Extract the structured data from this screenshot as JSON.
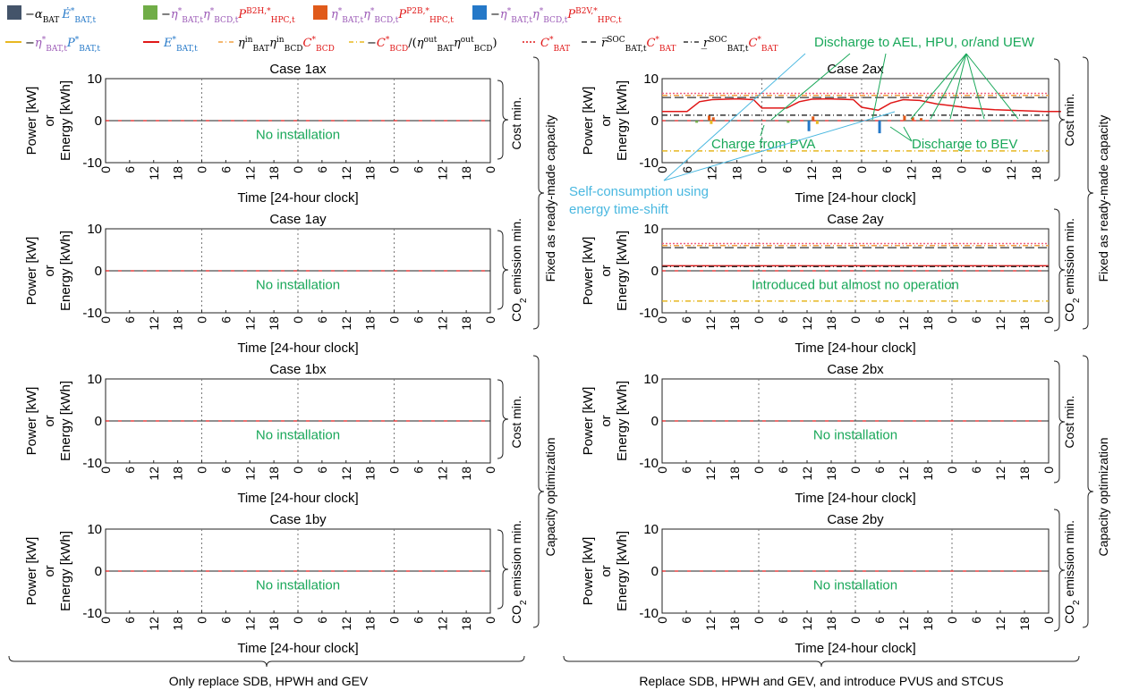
{
  "legend": {
    "row1": [
      {
        "minus": "−",
        "coef": "α",
        "coef_sub": "BAT",
        "sym": "Ė",
        "sup": "*",
        "sub": "BAT,t",
        "color_key": "navy"
      },
      {
        "minus": "−",
        "eta1": "η",
        "eta1_sup": "*",
        "eta1_sub": "BAT,t",
        "eta2": "η",
        "eta2_sup": "*",
        "eta2_sub": "BCD,t",
        "p": "P",
        "p_sup": "B2H,*",
        "p_sub": "HPC,t",
        "color_key": "green"
      },
      {
        "minus": "",
        "eta1": "η",
        "eta1_sup": "*",
        "eta1_sub": "BAT,t",
        "eta2": "η",
        "eta2_sup": "*",
        "eta2_sub": "BCD,t",
        "p": "P",
        "p_sup": "P2B,*",
        "p_sub": "HPC,t",
        "color_key": "orange"
      },
      {
        "minus": "−",
        "eta1": "η",
        "eta1_sup": "*",
        "eta1_sub": "BAT,t",
        "eta2": "η",
        "eta2_sup": "*",
        "eta2_sub": "BCD,t",
        "p": "P",
        "p_sup": "B2V,*",
        "p_sub": "HPC,t",
        "color_key": "blue"
      }
    ],
    "row2": [
      {
        "minus": "−",
        "eta": "η",
        "eta_sup": "*",
        "eta_sub": "BAT,t",
        "p": "P",
        "p_sup": "*",
        "p_sub": "BAT,t"
      },
      {
        "e": "E",
        "e_sup": "*",
        "e_sub": "BAT,t"
      },
      {
        "eta1": "η",
        "eta1_sup": "in",
        "eta1_sub": "BAT",
        "eta2": "η",
        "eta2_sup": "in",
        "eta2_sub": "BCD",
        "c": "C",
        "c_sup": "*",
        "c_sub": "BCD"
      },
      {
        "minus": "−",
        "c": "C",
        "c_sup": "*",
        "c_sub": "BCD",
        "slash": "/(",
        "eta1": "η",
        "eta1_sup": "out",
        "eta1_sub": "BAT",
        "eta2": "η",
        "eta2_sup": "out",
        "eta2_sub": "BCD",
        "close": ")"
      },
      {
        "c": "C",
        "c_sup": "*",
        "c_sub": "BAT"
      },
      {
        "r": "r̅",
        "r_sup": "SOC",
        "r_sub": "BAT,t",
        "c": "C",
        "c_sup": "*",
        "c_sub": "BAT"
      },
      {
        "r": "r̲",
        "r_sup": "SOC",
        "r_sub": "BAT,t",
        "c": "C",
        "c_sup": "*",
        "c_sub": "BAT"
      }
    ]
  },
  "colors": {
    "navy": "#44546a",
    "green": "#70ad47",
    "orange": "#e05a1a",
    "blue": "#2478c8",
    "yellow": "#e8b820",
    "red": "#e01818",
    "soc": "#333333",
    "pink": "#f06080",
    "annot_green": "#1aa85a",
    "annot_cyan": "#4ab8e0"
  },
  "axis": {
    "ylabel_1": "Power [kW]",
    "ylabel_2": "or",
    "ylabel_3": "Energy [kWh]",
    "xlabel": "Time [24-hour clock]",
    "yticks": [
      "10",
      "0",
      "-10"
    ],
    "xticks": [
      "0",
      "6",
      "12",
      "18",
      "0",
      "6",
      "12",
      "18",
      "0",
      "6",
      "12",
      "18",
      "0",
      "6",
      "12",
      "18",
      "0"
    ],
    "xticks_2ax": [
      "0",
      "6",
      "12",
      "18",
      "0",
      "6",
      "12",
      "18",
      "0",
      "6",
      "12",
      "18",
      "0",
      "6",
      "12",
      "18"
    ]
  },
  "panels": [
    {
      "title": "Case 1ax",
      "note": "No installation"
    },
    {
      "title": "Case 1ay",
      "note": "No installation"
    },
    {
      "title": "Case 1bx",
      "note": "No installation"
    },
    {
      "title": "Case 1by",
      "note": "No installation"
    },
    {
      "title": "Case 2ax",
      "note": ""
    },
    {
      "title": "Case 2ay",
      "note": "Introduced but almost no operation"
    },
    {
      "title": "Case 2bx",
      "note": "No installation"
    },
    {
      "title": "Case 2by",
      "note": "No installation"
    }
  ],
  "side_labels": {
    "cost": "Cost min.",
    "co2_a": "CO",
    "co2_sub": "2",
    "co2_b": " emission min.",
    "fixed": "Fixed as ready-made capacity",
    "capopt": "Capacity optimization"
  },
  "bottom_labels": {
    "left": "Only replace SDB, HPWH and GEV",
    "right": "Replace SDB, HPWH and GEV, and introduce PVUS and STCUS"
  },
  "annotations": {
    "discharge_uew": "Discharge to AEL, HPU, or/and UEW",
    "charge_pva": "Charge from PVA",
    "discharge_bev": "Discharge to BEV",
    "self_1": "Self-consumption using",
    "self_2": "energy time-shift"
  },
  "chart_data": {
    "type": "line",
    "x_unit": "hour of 24-hour clock over 4 days",
    "ylim": [
      -10,
      10
    ],
    "grid": "vertical dotted at day boundaries",
    "case_2ax": {
      "series": [
        {
          "key": "C_BAT_star",
          "style": "dotted pink",
          "value": 6.5
        },
        {
          "key": "etaBAT_in_etaBCD_in_C_BCD",
          "style": "dash-dot orange",
          "value": 6.0
        },
        {
          "key": "upper_soc_C_BAT",
          "style": "long-dash dark",
          "value": 5.5
        },
        {
          "key": "lower_soc_C_BAT",
          "style": "dash-dot dark",
          "value": 1.3
        },
        {
          "key": "minus_C_BCD_over_eta",
          "style": "dash-dot yellow",
          "value": -7.2
        },
        {
          "key": "E_BAT",
          "style": "solid red",
          "points": [
            [
              0,
              2.2
            ],
            [
              6,
              2.2
            ],
            [
              9,
              4.5
            ],
            [
              12,
              5.0
            ],
            [
              18,
              5.2
            ],
            [
              22,
              5.0
            ],
            [
              24,
              3.0
            ],
            [
              30,
              3.0
            ],
            [
              33,
              4.5
            ],
            [
              36,
              5.1
            ],
            [
              40,
              5.2
            ],
            [
              46,
              5.0
            ],
            [
              48,
              3.2
            ],
            [
              52,
              2.5
            ],
            [
              55,
              4.2
            ],
            [
              58,
              5.0
            ],
            [
              62,
              4.8
            ],
            [
              66,
              4.0
            ],
            [
              70,
              3.5
            ],
            [
              74,
              3.0
            ],
            [
              80,
              2.6
            ],
            [
              86,
              2.4
            ],
            [
              92,
              2.2
            ],
            [
              96,
              2.2
            ]
          ]
        }
      ]
    },
    "case_2ay": {
      "series": [
        {
          "key": "C_BAT_star",
          "style": "dotted pink",
          "value": 6.5
        },
        {
          "key": "etaBAT_in_etaBCD_in_C_BCD",
          "style": "dash-dot orange",
          "value": 6.0
        },
        {
          "key": "upper_soc_C_BAT",
          "style": "long-dash dark",
          "value": 5.5
        },
        {
          "key": "E_BAT",
          "style": "solid red",
          "value": 1.2
        },
        {
          "key": "lower_soc_C_BAT",
          "style": "dash-dot dark",
          "value": 1.0
        },
        {
          "key": "minus_C_BCD_over_eta",
          "style": "dash-dot yellow",
          "value": -7.2
        }
      ]
    },
    "other_cases": {
      "all_series": 0
    }
  }
}
